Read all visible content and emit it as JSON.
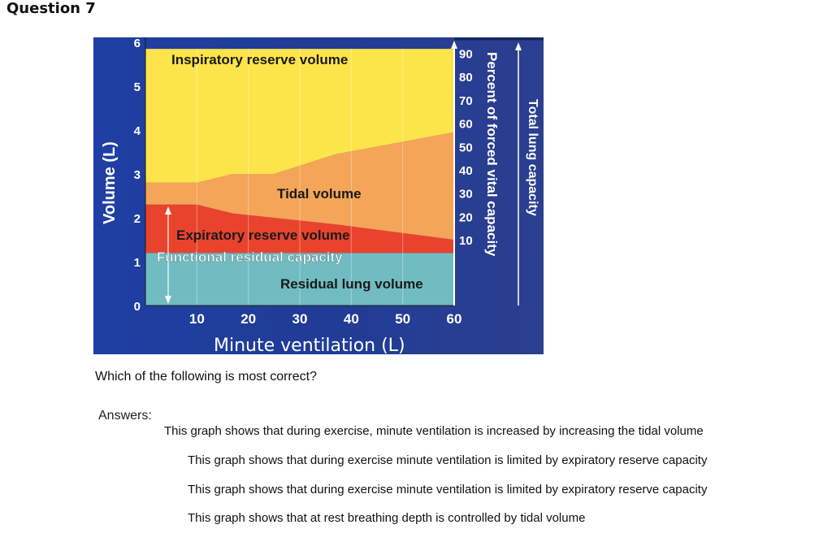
{
  "question": {
    "title": "Question 7",
    "prompt": "Which of the following is most correct?"
  },
  "figure": {
    "colors": {
      "background": "#1f3a8f",
      "inspiratory": "#fce44a",
      "tidal": "#f4a557",
      "expiratory": "#e9432e",
      "residual": "#71bcc1"
    },
    "regions": {
      "inspiratory": "Inspiratory reserve volume",
      "tidal": "Tidal volume",
      "expiratory": "Expiratory reserve volume",
      "functional": "Functional residual capacity",
      "residual": "Residual lung volume"
    },
    "left_axis_label": "Volume (L)",
    "right_axis_label": "Percent of forced vital capacity",
    "far_right_label": "Total lung capacity",
    "x_axis_label": "Minute ventilation (L)"
  },
  "chart_data": {
    "type": "area",
    "title": "",
    "xlabel": "Minute ventilation (L)",
    "ylabel": "Volume (L)",
    "xlim": [
      0,
      60
    ],
    "ylim": [
      0,
      6
    ],
    "x_ticks": [
      "10",
      "20",
      "30",
      "40",
      "50",
      "60"
    ],
    "y_ticks": [
      "0",
      "1",
      "2",
      "3",
      "4",
      "5",
      "6"
    ],
    "y2label": "Percent of forced vital capacity",
    "y2_ticks": [
      "10",
      "20",
      "30",
      "40",
      "50",
      "60",
      "70",
      "80",
      "90"
    ],
    "x": [
      0,
      10,
      17,
      25,
      37,
      60
    ],
    "series": [
      {
        "name": "Residual lung volume",
        "values": [
          1.2,
          1.2,
          1.2,
          1.2,
          1.2,
          1.2
        ]
      },
      {
        "name": "Expiratory reserve volume",
        "values": [
          2.3,
          2.3,
          2.1,
          2.0,
          1.85,
          1.5
        ]
      },
      {
        "name": "Tidal volume",
        "values": [
          2.8,
          2.8,
          3.0,
          3.0,
          3.45,
          3.95
        ]
      },
      {
        "name": "Inspiratory reserve volume",
        "values": [
          5.85,
          5.85,
          5.85,
          5.85,
          5.85,
          5.85
        ]
      }
    ]
  },
  "answers": {
    "label": "Answers:",
    "options": [
      "This graph shows that during exercise, minute ventilation is increased by increasing the tidal volume",
      "This graph shows that during exercise minute ventilation is limited by expiratory reserve capacity",
      "This graph shows that during exercise minute ventilation is limited by expiratory reserve capacity",
      "This graph shows that at rest breathing depth is controlled by tidal volume"
    ]
  }
}
